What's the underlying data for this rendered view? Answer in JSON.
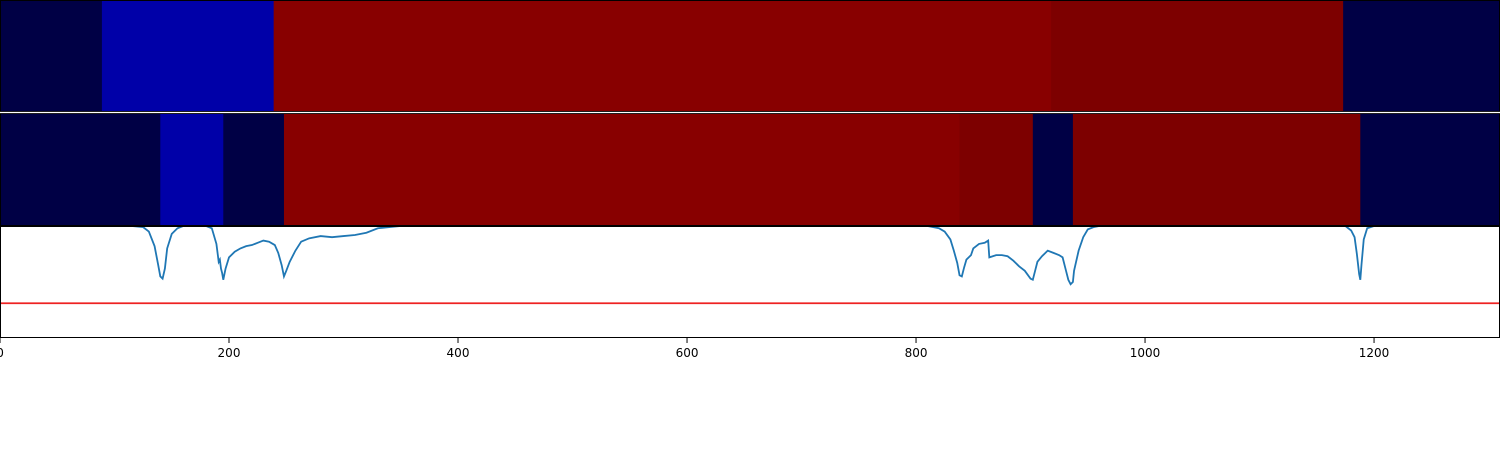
{
  "chart_data": [
    {
      "type": "heatmap",
      "panel": "top",
      "segments": [
        {
          "start": 0,
          "end": 89,
          "color": "#000045"
        },
        {
          "start": 89,
          "end": 239,
          "color": "#0000a8"
        },
        {
          "start": 239,
          "end": 918,
          "color": "#880000"
        },
        {
          "start": 918,
          "end": 1173,
          "color": "#7d0000"
        },
        {
          "start": 1173,
          "end": 1310,
          "color": "#000045"
        }
      ]
    },
    {
      "type": "heatmap",
      "panel": "middle",
      "segments": [
        {
          "start": 0,
          "end": 140,
          "color": "#000045"
        },
        {
          "start": 140,
          "end": 195,
          "color": "#0000a8"
        },
        {
          "start": 195,
          "end": 248,
          "color": "#000045"
        },
        {
          "start": 248,
          "end": 838,
          "color": "#880000"
        },
        {
          "start": 838,
          "end": 902,
          "color": "#7d0000"
        },
        {
          "start": 902,
          "end": 937,
          "color": "#000045"
        },
        {
          "start": 937,
          "end": 1188,
          "color": "#7d0000"
        },
        {
          "start": 1188,
          "end": 1310,
          "color": "#000045"
        }
      ]
    },
    {
      "type": "line",
      "panel": "bottom",
      "xlim": [
        0,
        1310
      ],
      "ylim": [
        0,
        1
      ],
      "threshold": {
        "value": 0.31,
        "color": "#ee2222"
      },
      "series": [
        {
          "color": "#1f77b4",
          "points": [
            [
              0,
              1
            ],
            [
              115,
              1
            ],
            [
              125,
              0.99
            ],
            [
              130,
              0.95
            ],
            [
              135,
              0.82
            ],
            [
              138,
              0.66
            ],
            [
              140,
              0.55
            ],
            [
              142,
              0.53
            ],
            [
              144,
              0.62
            ],
            [
              146,
              0.8
            ],
            [
              150,
              0.93
            ],
            [
              155,
              0.98
            ],
            [
              160,
              1
            ],
            [
              170,
              1
            ],
            [
              180,
              1
            ],
            [
              185,
              0.98
            ],
            [
              189,
              0.84
            ],
            [
              190,
              0.76
            ],
            [
              191,
              0.68
            ],
            [
              192,
              0.7
            ],
            [
              193,
              0.62
            ],
            [
              194,
              0.58
            ],
            [
              195,
              0.52
            ],
            [
              197,
              0.62
            ],
            [
              200,
              0.72
            ],
            [
              205,
              0.77
            ],
            [
              210,
              0.8
            ],
            [
              215,
              0.82
            ],
            [
              220,
              0.83
            ],
            [
              225,
              0.85
            ],
            [
              230,
              0.87
            ],
            [
              235,
              0.86
            ],
            [
              240,
              0.83
            ],
            [
              243,
              0.76
            ],
            [
              246,
              0.65
            ],
            [
              248,
              0.55
            ],
            [
              250,
              0.6
            ],
            [
              253,
              0.68
            ],
            [
              258,
              0.78
            ],
            [
              263,
              0.86
            ],
            [
              270,
              0.89
            ],
            [
              280,
              0.91
            ],
            [
              290,
              0.9
            ],
            [
              300,
              0.91
            ],
            [
              310,
              0.92
            ],
            [
              320,
              0.94
            ],
            [
              330,
              0.98
            ],
            [
              340,
              0.99
            ],
            [
              350,
              1
            ],
            [
              810,
              1
            ],
            [
              820,
              0.98
            ],
            [
              825,
              0.95
            ],
            [
              830,
              0.88
            ],
            [
              833,
              0.78
            ],
            [
              836,
              0.67
            ],
            [
              838,
              0.56
            ],
            [
              840,
              0.55
            ],
            [
              842,
              0.63
            ],
            [
              844,
              0.7
            ],
            [
              846,
              0.72
            ],
            [
              848,
              0.74
            ],
            [
              850,
              0.8
            ],
            [
              855,
              0.84
            ],
            [
              860,
              0.85
            ],
            [
              863,
              0.87
            ],
            [
              864,
              0.72
            ],
            [
              867,
              0.73
            ],
            [
              870,
              0.74
            ],
            [
              875,
              0.74
            ],
            [
              880,
              0.73
            ],
            [
              885,
              0.69
            ],
            [
              890,
              0.64
            ],
            [
              895,
              0.6
            ],
            [
              900,
              0.53
            ],
            [
              902,
              0.52
            ],
            [
              904,
              0.6
            ],
            [
              906,
              0.68
            ],
            [
              910,
              0.73
            ],
            [
              915,
              0.78
            ],
            [
              920,
              0.76
            ],
            [
              925,
              0.74
            ],
            [
              928,
              0.72
            ],
            [
              931,
              0.6
            ],
            [
              933,
              0.52
            ],
            [
              935,
              0.48
            ],
            [
              937,
              0.5
            ],
            [
              938,
              0.6
            ],
            [
              942,
              0.78
            ],
            [
              946,
              0.9
            ],
            [
              950,
              0.97
            ],
            [
              955,
              0.99
            ],
            [
              960,
              1
            ],
            [
              1175,
              1
            ],
            [
              1180,
              0.96
            ],
            [
              1183,
              0.9
            ],
            [
              1185,
              0.75
            ],
            [
              1187,
              0.57
            ],
            [
              1188,
              0.52
            ],
            [
              1189,
              0.65
            ],
            [
              1191,
              0.88
            ],
            [
              1194,
              0.98
            ],
            [
              1200,
              1
            ],
            [
              1310,
              1
            ]
          ]
        }
      ]
    },
    {
      "type": "axis",
      "xlim": [
        0,
        1310
      ],
      "ticks": [
        0,
        200,
        400,
        600,
        800,
        1000,
        1200
      ],
      "tick_labels": [
        "0",
        "200",
        "400",
        "600",
        "800",
        "1000",
        "1200"
      ]
    }
  ]
}
